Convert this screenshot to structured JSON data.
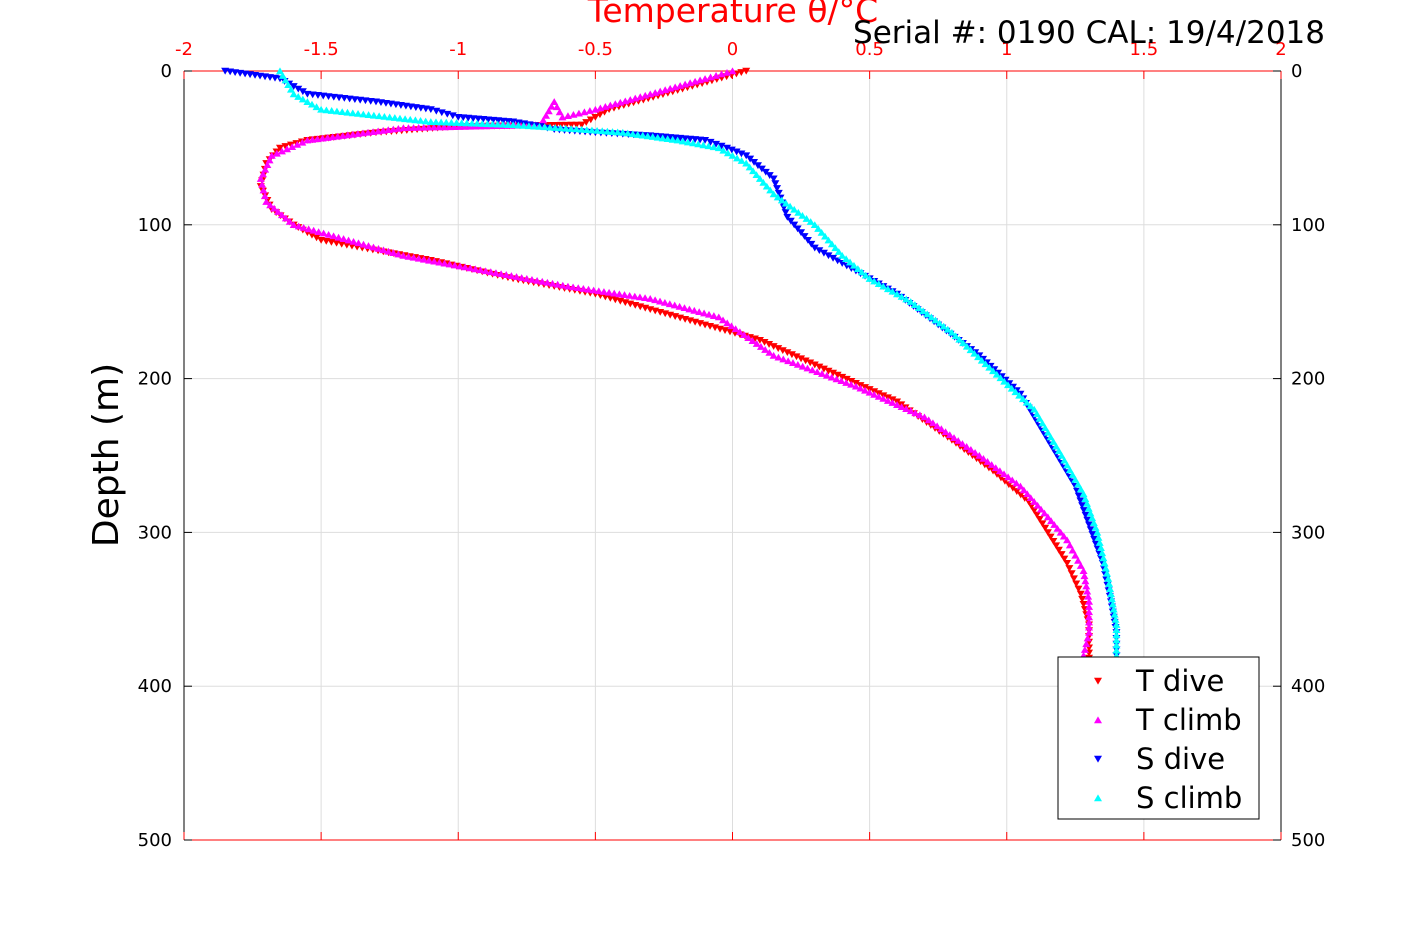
{
  "chart_data": {
    "type": "scatter",
    "title": "Temperature θ/°C",
    "annotation": "Serial #: 0190  CAL: 19/4/2018",
    "xlabel": "Temperature θ/°C",
    "ylabel": "Depth (m)",
    "xlim": [
      -2,
      2
    ],
    "ylim": [
      0,
      500
    ],
    "y_reversed": true,
    "x_axis_position": "top",
    "grid": true,
    "x_ticks": [
      "-2",
      "-1.5",
      "-1",
      "-0.5",
      "0",
      "0.5",
      "1",
      "1.5",
      "2"
    ],
    "y_ticks": [
      "0",
      "100",
      "200",
      "300",
      "400",
      "500"
    ],
    "legend_position": "bottom-right",
    "colors": {
      "axis_x": "#ff0000",
      "axis_y": "#000000",
      "grid": "#dddddd"
    },
    "series": [
      {
        "name": "T dive",
        "marker": "triangle-down",
        "color": "#ff0000",
        "x": [
          0.05,
          -0.45,
          -0.5,
          -0.55,
          -1.0,
          -1.3,
          -1.55,
          -1.65,
          -1.7,
          -1.72,
          -1.68,
          -1.6,
          -1.5,
          -1.35,
          -1.1,
          -0.8,
          -0.5,
          -0.3,
          -0.1,
          0.1,
          0.35,
          0.6,
          0.8,
          0.95,
          1.08,
          1.15,
          1.22,
          1.27,
          1.3,
          1.3,
          1.3
        ],
        "y": [
          0,
          25,
          30,
          35,
          36,
          40,
          45,
          50,
          60,
          75,
          90,
          100,
          110,
          115,
          123,
          135,
          145,
          155,
          165,
          175,
          195,
          215,
          240,
          260,
          280,
          300,
          320,
          340,
          360,
          375,
          385
        ]
      },
      {
        "name": "T climb",
        "marker": "triangle-up",
        "color": "#ff00ff",
        "x": [
          0.0,
          -0.1,
          -0.3,
          -0.5,
          -0.62,
          -0.65,
          -0.7,
          -1.2,
          -1.55,
          -1.68,
          -1.72,
          -1.7,
          -1.6,
          -1.4,
          -1.2,
          -0.9,
          -0.6,
          -0.3,
          -0.05,
          0.15,
          0.45,
          0.7,
          0.9,
          1.05,
          1.15,
          1.22,
          1.28,
          1.3,
          1.3,
          1.28
        ],
        "y": [
          0,
          5,
          15,
          25,
          30,
          20,
          35,
          37,
          45,
          55,
          70,
          85,
          100,
          110,
          120,
          130,
          140,
          148,
          160,
          185,
          205,
          225,
          250,
          270,
          290,
          305,
          325,
          345,
          365,
          380
        ]
      },
      {
        "name": "S dive",
        "marker": "triangle-down",
        "color": "#0000ff",
        "x": [
          -1.85,
          -1.65,
          -1.55,
          -1.3,
          -1.1,
          -1.0,
          -0.8,
          -0.7,
          -0.65,
          -0.5,
          -0.3,
          -0.1,
          -0.02,
          0.05,
          0.15,
          0.2,
          0.3,
          0.45,
          0.6,
          0.75,
          0.9,
          1.05,
          1.15,
          1.25,
          1.3,
          1.35,
          1.38,
          1.4,
          1.4
        ],
        "y": [
          0,
          5,
          15,
          20,
          25,
          30,
          33,
          36,
          38,
          40,
          42,
          45,
          50,
          55,
          70,
          95,
          115,
          130,
          145,
          165,
          185,
          210,
          240,
          270,
          295,
          320,
          345,
          365,
          380
        ]
      },
      {
        "name": "S climb",
        "marker": "triangle-up",
        "color": "#00ffff",
        "x": [
          -1.65,
          -1.6,
          -1.5,
          -1.25,
          -1.1,
          -0.8,
          -0.55,
          -0.4,
          -0.2,
          -0.05,
          0.05,
          0.15,
          0.3,
          0.4,
          0.5,
          0.65,
          0.8,
          0.95,
          1.1,
          1.2,
          1.28,
          1.33,
          1.37,
          1.4,
          1.4
        ],
        "y": [
          0,
          15,
          25,
          30,
          33,
          35,
          38,
          40,
          45,
          50,
          60,
          80,
          100,
          120,
          135,
          150,
          170,
          195,
          220,
          250,
          275,
          300,
          330,
          360,
          380
        ]
      }
    ]
  }
}
